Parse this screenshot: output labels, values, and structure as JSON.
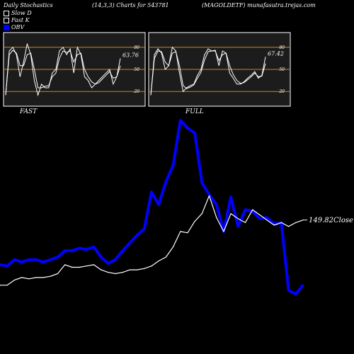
{
  "header": {
    "title": "Daily Stochastics",
    "params": "(14,3,3) Charts for 543781",
    "symbol": "(MAGOLDETF) munafasutra.trejas.com"
  },
  "legend": [
    {
      "label": "Slow  D",
      "color": "#ffffff",
      "filled": false
    },
    {
      "label": "Fast K",
      "color": "#ffffff",
      "filled": false
    },
    {
      "label": "OBV",
      "color": "#0000ff",
      "filled": true
    }
  ],
  "panels": [
    {
      "label": "FAST",
      "value_label": "63.76",
      "k": [
        15,
        75,
        80,
        70,
        40,
        60,
        85,
        70,
        35,
        15,
        30,
        25,
        25,
        45,
        50,
        75,
        80,
        70,
        78,
        45,
        80,
        70,
        40,
        35,
        25,
        30,
        35,
        40,
        45,
        50,
        30,
        40,
        65
      ],
      "d": [
        15,
        70,
        76,
        72,
        55,
        55,
        70,
        72,
        50,
        25,
        25,
        27,
        28,
        40,
        45,
        65,
        75,
        73,
        75,
        60,
        70,
        72,
        50,
        40,
        33,
        30,
        32,
        37,
        42,
        47,
        38,
        40,
        55
      ]
    },
    {
      "label": "FULL",
      "value_label": "67.42",
      "k": [
        15,
        70,
        78,
        72,
        50,
        55,
        80,
        75,
        45,
        20,
        25,
        28,
        30,
        42,
        50,
        70,
        78,
        75,
        76,
        55,
        75,
        72,
        45,
        38,
        30,
        30,
        33,
        38,
        42,
        47,
        38,
        42,
        67
      ],
      "d": [
        15,
        65,
        75,
        74,
        60,
        55,
        72,
        74,
        55,
        28,
        24,
        26,
        29,
        38,
        46,
        63,
        74,
        75,
        75,
        62,
        70,
        72,
        55,
        43,
        35,
        31,
        32,
        36,
        40,
        45,
        40,
        41,
        58
      ]
    }
  ],
  "stoch_scale": {
    "ylim": [
      0,
      100
    ],
    "ticks": [
      20,
      50,
      80
    ],
    "levels": [
      20,
      50,
      80
    ]
  },
  "chart_data": {
    "type": "line",
    "series": [
      {
        "name": "OBV",
        "color": "#0000ff",
        "values": [
          20,
          19,
          24,
          22,
          24,
          24,
          22,
          24,
          26,
          31,
          31,
          33,
          32,
          34,
          26,
          21,
          24,
          31,
          37,
          43,
          48,
          77,
          67,
          85,
          98,
          133,
          127,
          123,
          84,
          75,
          67,
          46,
          73,
          50,
          63,
          62,
          56,
          57,
          52,
          53,
          0,
          -3,
          4
        ]
      },
      {
        "name": "Close",
        "color": "#ffffff",
        "values": [
          4,
          4,
          8,
          10,
          9,
          10,
          10,
          11,
          13,
          20,
          18,
          18,
          19,
          20,
          16,
          14,
          13,
          14,
          16,
          16,
          17,
          19,
          23,
          26,
          34,
          46,
          45,
          54,
          60,
          74,
          57,
          46,
          60,
          56,
          53,
          63,
          59,
          55,
          51,
          53,
          50,
          53,
          55
        ]
      }
    ],
    "close_label": "149.82Close"
  }
}
